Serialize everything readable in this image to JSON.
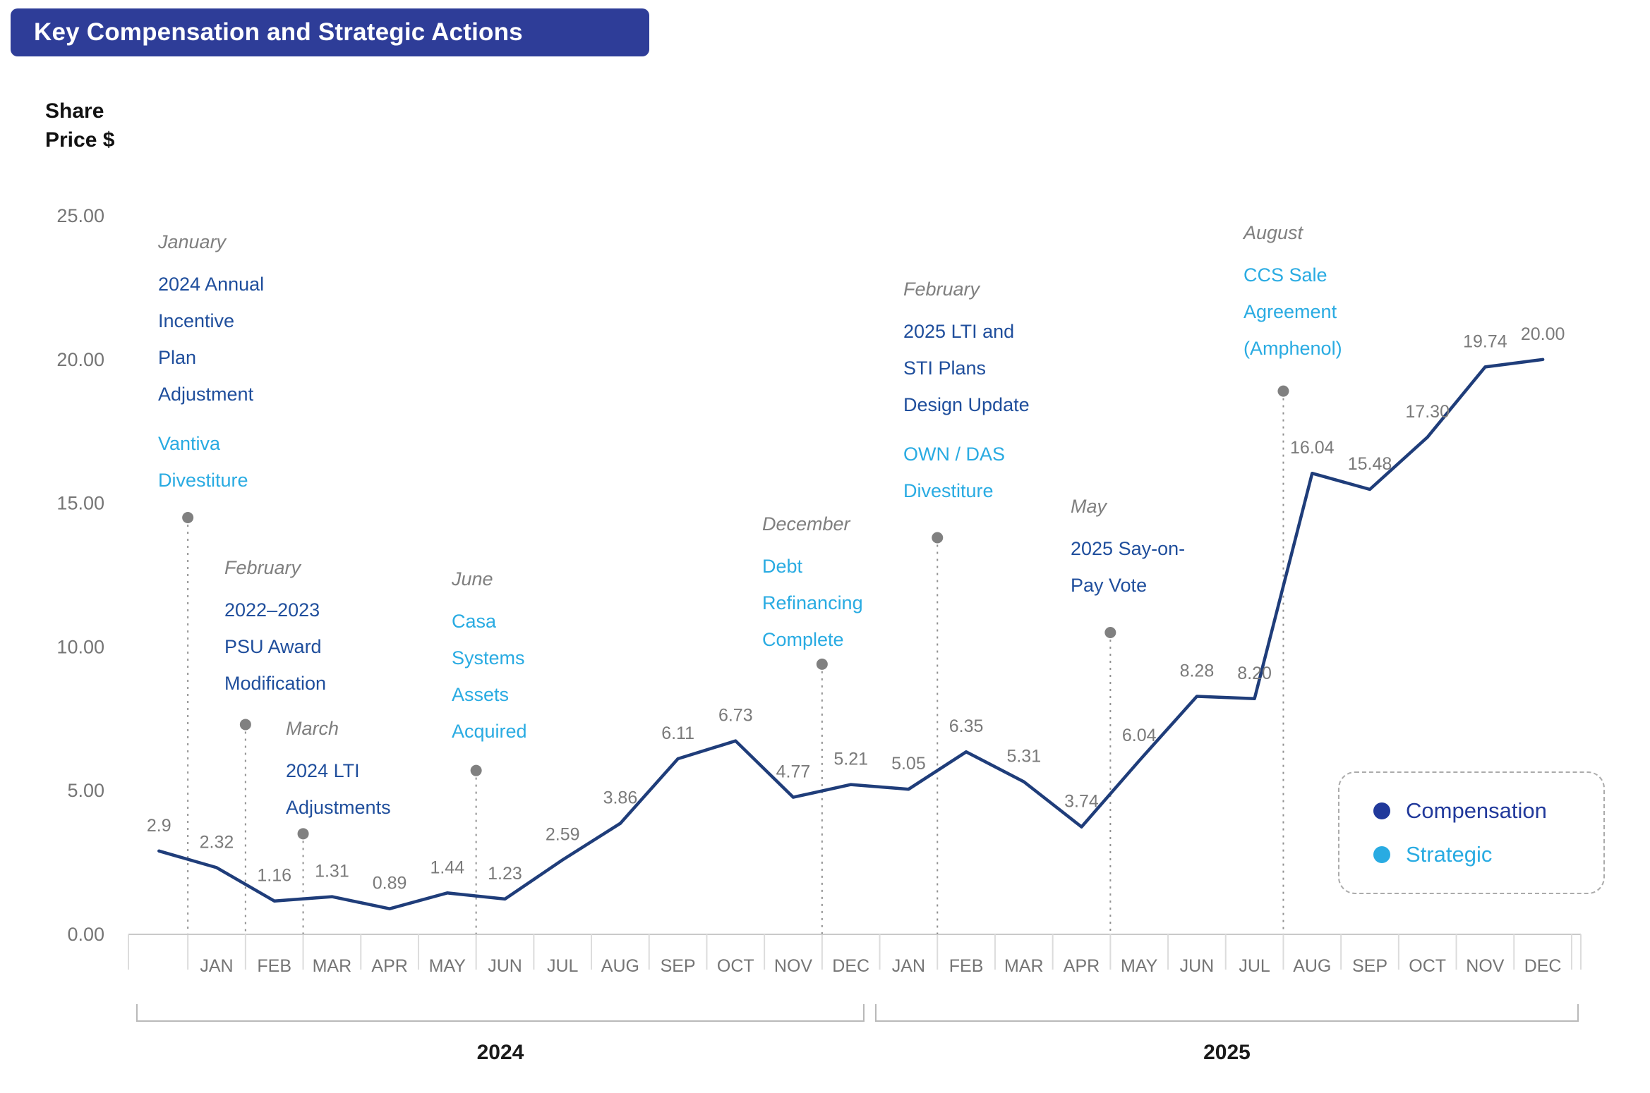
{
  "title": "Key Compensation and Strategic Actions",
  "axis": {
    "y_label_lines": [
      "Share",
      "Price $"
    ]
  },
  "legend": {
    "compensation": "Compensation",
    "strategic": "Strategic"
  },
  "colors": {
    "title_bg": "#2e3d98",
    "line": "#1f3d7a",
    "compensation_text": "#1f4e9c",
    "strategic_text": "#29abe2",
    "marker_gray": "#808080"
  },
  "chart_data": {
    "type": "line",
    "title": "Key Compensation and Strategic Actions",
    "ylabel": "Share Price $",
    "ylim": [
      0,
      25
    ],
    "grid": false,
    "legend_position": "lower right",
    "y_ticks": [
      25.0,
      20.0,
      15.0,
      10.0,
      5.0,
      0.0
    ],
    "y_tick_labels": [
      "25.00",
      "20.00",
      "15.00",
      "10.00",
      "5.00",
      "0.00"
    ],
    "x_months": [
      "JAN",
      "FEB",
      "MAR",
      "APR",
      "MAY",
      "JUN",
      "JUL",
      "AUG",
      "SEP",
      "OCT",
      "NOV",
      "DEC",
      "JAN",
      "FEB",
      "MAR",
      "APR",
      "MAY",
      "JUN",
      "JUL",
      "AUG",
      "SEP",
      "OCT",
      "NOV",
      "DEC"
    ],
    "x_note": "first data point is plotted one month before JAN 2024",
    "series": [
      {
        "name": "Share Price $",
        "values": [
          2.9,
          2.32,
          1.16,
          1.31,
          0.89,
          1.44,
          1.23,
          2.59,
          3.86,
          6.11,
          6.73,
          4.77,
          5.21,
          5.05,
          6.35,
          5.31,
          3.74,
          6.04,
          8.28,
          8.2,
          16.04,
          15.48,
          17.3,
          19.74,
          20.0
        ],
        "point_labels": [
          "2.9",
          "2.32",
          "1.16",
          "1.31",
          "0.89",
          "1.44",
          "1.23",
          "2.59",
          "3.86",
          "6.11",
          "6.73",
          "4.77",
          "5.21",
          "5.05",
          "6.35",
          "5.31",
          "3.74",
          "6.04",
          "8.28",
          "8.20",
          "16.04",
          "15.48",
          "17.30",
          "19.74",
          "20.00"
        ]
      }
    ],
    "year_groups": [
      {
        "label": "2024"
      },
      {
        "label": "2025"
      }
    ],
    "annotations": [
      {
        "month": "January",
        "marker_month_index": -0.5,
        "marker_value": 14.5,
        "items": [
          {
            "type": "compensation",
            "text": "2024 Annual\nIncentive\nPlan\nAdjustment"
          },
          {
            "type": "strategic",
            "text": "Vantiva\nDivestiture"
          }
        ]
      },
      {
        "month": "February",
        "marker_month_index": 0.5,
        "marker_value": 7.3,
        "items": [
          {
            "type": "compensation",
            "text": "2022–2023\nPSU Award\nModification"
          }
        ]
      },
      {
        "month": "March",
        "marker_month_index": 1.5,
        "marker_value": 3.5,
        "items": [
          {
            "type": "compensation",
            "text": "2024 LTI\nAdjustments"
          }
        ]
      },
      {
        "month": "June",
        "marker_month_index": 4.5,
        "marker_value": 5.7,
        "items": [
          {
            "type": "strategic",
            "text": "Casa\nSystems\nAssets\nAcquired"
          }
        ]
      },
      {
        "month": "December",
        "marker_month_index": 10.5,
        "marker_value": 9.4,
        "items": [
          {
            "type": "strategic",
            "text": "Debt\nRefinancing\nComplete"
          }
        ]
      },
      {
        "month": "February",
        "marker_month_index": 12.5,
        "marker_value": 13.8,
        "items": [
          {
            "type": "compensation",
            "text": "2025 LTI and\nSTI Plans\nDesign Update"
          },
          {
            "type": "strategic",
            "text": "OWN / DAS\nDivestiture"
          }
        ]
      },
      {
        "month": "May",
        "marker_month_index": 15.5,
        "marker_value": 10.5,
        "items": [
          {
            "type": "compensation",
            "text": "2025 Say-on-\nPay Vote"
          }
        ]
      },
      {
        "month": "August",
        "marker_month_index": 18.5,
        "marker_value": 18.9,
        "items": [
          {
            "type": "strategic",
            "text": "CCS Sale\nAgreement\n(Amphenol)"
          }
        ]
      }
    ]
  }
}
